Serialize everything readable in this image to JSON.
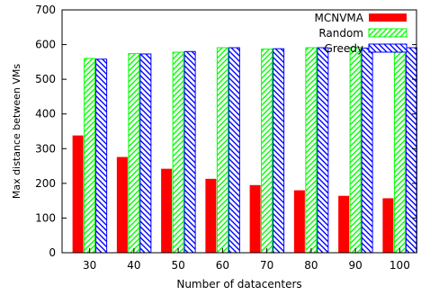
{
  "chart_data": {
    "type": "bar",
    "xlabel": "Number of datacenters",
    "ylabel": "Max distance between VMs",
    "categories": [
      "30",
      "40",
      "50",
      "60",
      "70",
      "80",
      "90",
      "100"
    ],
    "ylim": [
      0,
      700
    ],
    "yticks": [
      0,
      100,
      200,
      300,
      400,
      500,
      600,
      700
    ],
    "grid": false,
    "legend_position": "top-right",
    "series": [
      {
        "name": "MCNVMA",
        "values": [
          338,
          276,
          242,
          213,
          195,
          180,
          164,
          157
        ],
        "color": "#ff0000",
        "pattern": "solid"
      },
      {
        "name": "Random",
        "values": [
          560,
          574,
          578,
          591,
          587,
          591,
          592,
          587
        ],
        "color": "#00ff00",
        "pattern": "diagonal-hatch-down"
      },
      {
        "name": "Greedy",
        "values": [
          558,
          573,
          580,
          591,
          588,
          591,
          590,
          591
        ],
        "color": "#0000ff",
        "pattern": "diagonal-hatch-up"
      }
    ]
  }
}
